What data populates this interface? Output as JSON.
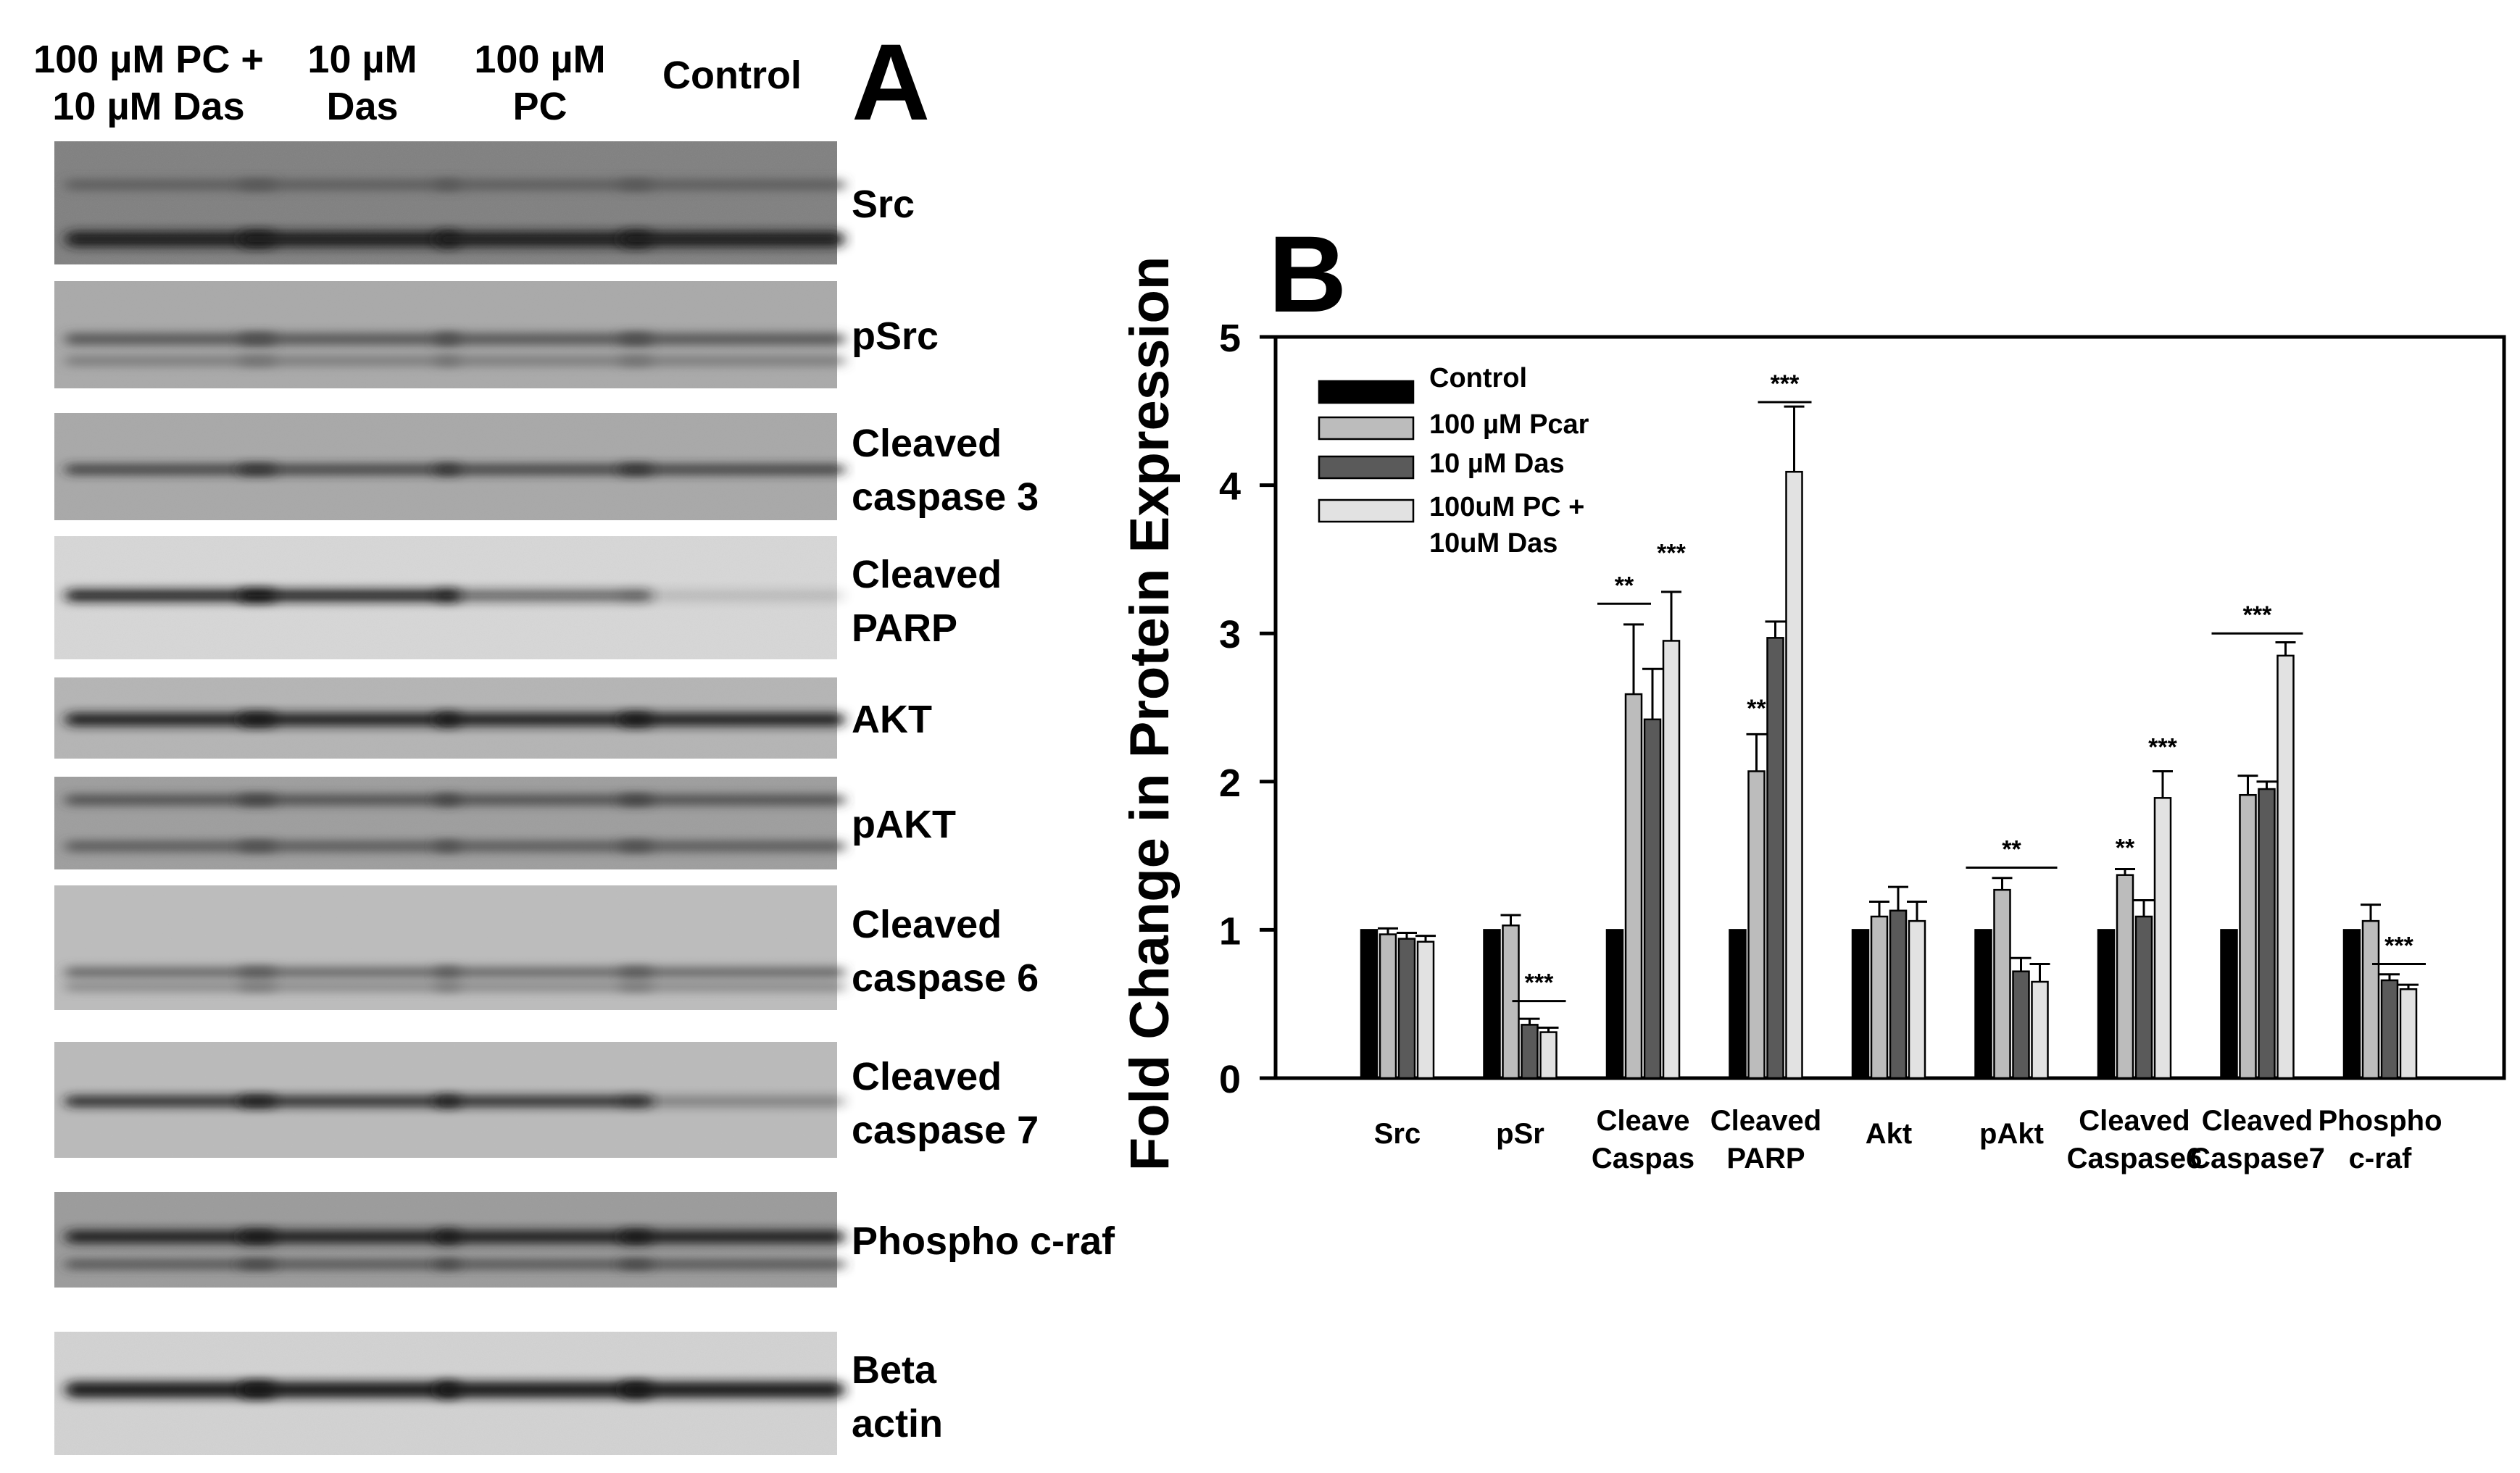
{
  "panel_a": {
    "letter": "A",
    "lane_labels": [
      {
        "line1": "100 µM PC +",
        "line2": "10 µM Das"
      },
      {
        "line1": "10 µM",
        "line2": "Das"
      },
      {
        "line1": "100 µM",
        "line2": "PC"
      },
      {
        "line1": "Control",
        "line2": ""
      }
    ],
    "blots": [
      {
        "line1": "Src",
        "line2": ""
      },
      {
        "line1": "pSrc",
        "line2": ""
      },
      {
        "line1": "Cleaved",
        "line2": "caspase 3"
      },
      {
        "line1": "Cleaved",
        "line2": "PARP"
      },
      {
        "line1": "AKT",
        "line2": ""
      },
      {
        "line1": "pAKT",
        "line2": ""
      },
      {
        "line1": "Cleaved",
        "line2": "caspase 6"
      },
      {
        "line1": "Cleaved",
        "line2": "caspase 7"
      },
      {
        "line1": "Phospho c-raf",
        "line2": ""
      },
      {
        "line1": "Beta",
        "line2": "actin"
      }
    ]
  },
  "chart_data": {
    "type": "bar",
    "panel_letter": "B",
    "ylabel": "Fold Change in Protein Expression",
    "xlabel": "",
    "ylim": [
      0,
      5
    ],
    "yticks": [
      0,
      1,
      2,
      3,
      4,
      5
    ],
    "grid": false,
    "legend_position": "top-left",
    "categories": [
      {
        "line1": "Src",
        "line2": ""
      },
      {
        "line1": "pSr",
        "line2": ""
      },
      {
        "line1": "Cleave",
        "line2": "Caspas"
      },
      {
        "line1": "Cleaved",
        "line2": "PARP"
      },
      {
        "line1": "Akt",
        "line2": ""
      },
      {
        "line1": "pAkt",
        "line2": ""
      },
      {
        "line1": "Cleaved",
        "line2": "Caspase6"
      },
      {
        "line1": "Cleaved",
        "line2": "Caspase7"
      },
      {
        "line1": "Phospho",
        "line2": "c-raf"
      }
    ],
    "series": [
      {
        "name": "Control",
        "name_line2": "",
        "color": "#000000",
        "values": [
          1.0,
          1.0,
          1.0,
          1.0,
          1.0,
          1.0,
          1.0,
          1.0,
          1.0
        ],
        "errors": [
          0,
          0,
          0,
          0,
          0,
          0,
          0,
          0,
          0
        ]
      },
      {
        "name": "100 µM Pcar",
        "name_line2": "",
        "color": "#bcbcbc",
        "values": [
          0.97,
          1.03,
          2.59,
          2.07,
          1.09,
          1.27,
          1.37,
          1.91,
          1.06
        ],
        "errors": [
          0.04,
          0.07,
          0.47,
          0.25,
          0.1,
          0.08,
          0.04,
          0.13,
          0.11
        ]
      },
      {
        "name": "10 µM Das",
        "name_line2": "",
        "color": "#5a5a5a",
        "values": [
          0.94,
          0.36,
          2.42,
          2.97,
          1.13,
          0.72,
          1.09,
          1.95,
          0.66
        ],
        "errors": [
          0.04,
          0.04,
          0.34,
          0.11,
          0.16,
          0.09,
          0.11,
          0.05,
          0.04
        ]
      },
      {
        "name": "100uM PC +",
        "name_line2": "10uM Das",
        "color": "#e2e2e2",
        "values": [
          0.92,
          0.31,
          2.95,
          4.09,
          1.06,
          0.65,
          1.89,
          2.85,
          0.6
        ],
        "errors": [
          0.04,
          0.03,
          0.33,
          0.44,
          0.13,
          0.12,
          0.18,
          0.09,
          0.03
        ]
      }
    ],
    "annotations": [
      {
        "text": "***",
        "category": 1,
        "from_series": 2,
        "to_series": 3,
        "y": 0.52,
        "line": true
      },
      {
        "text": "**",
        "category": 2,
        "from_series": 0,
        "to_series": 1,
        "y": 3.2,
        "line": true
      },
      {
        "text": "***",
        "category": 2,
        "from_series": 3,
        "to_series": 3,
        "y": 3.42,
        "line": false
      },
      {
        "text": "**",
        "category": 3,
        "from_series": 1,
        "to_series": 1,
        "y": 2.37,
        "line": false
      },
      {
        "text": "***",
        "category": 3,
        "from_series": 2,
        "to_series": 3,
        "y": 4.56,
        "line": true
      },
      {
        "text": "**",
        "category": 5,
        "from_series": 0,
        "to_series": 3,
        "y": 1.42,
        "line": true
      },
      {
        "text": "**",
        "category": 6,
        "from_series": 1,
        "to_series": 1,
        "y": 1.43,
        "line": false
      },
      {
        "text": "***",
        "category": 6,
        "from_series": 3,
        "to_series": 3,
        "y": 2.11,
        "line": false
      },
      {
        "text": "***",
        "category": 7,
        "from_series": 0,
        "to_series": 3,
        "y": 3.0,
        "line": true
      },
      {
        "text": "***",
        "category": 8,
        "from_series": 2,
        "to_series": 3,
        "y": 0.77,
        "line": true
      }
    ]
  }
}
